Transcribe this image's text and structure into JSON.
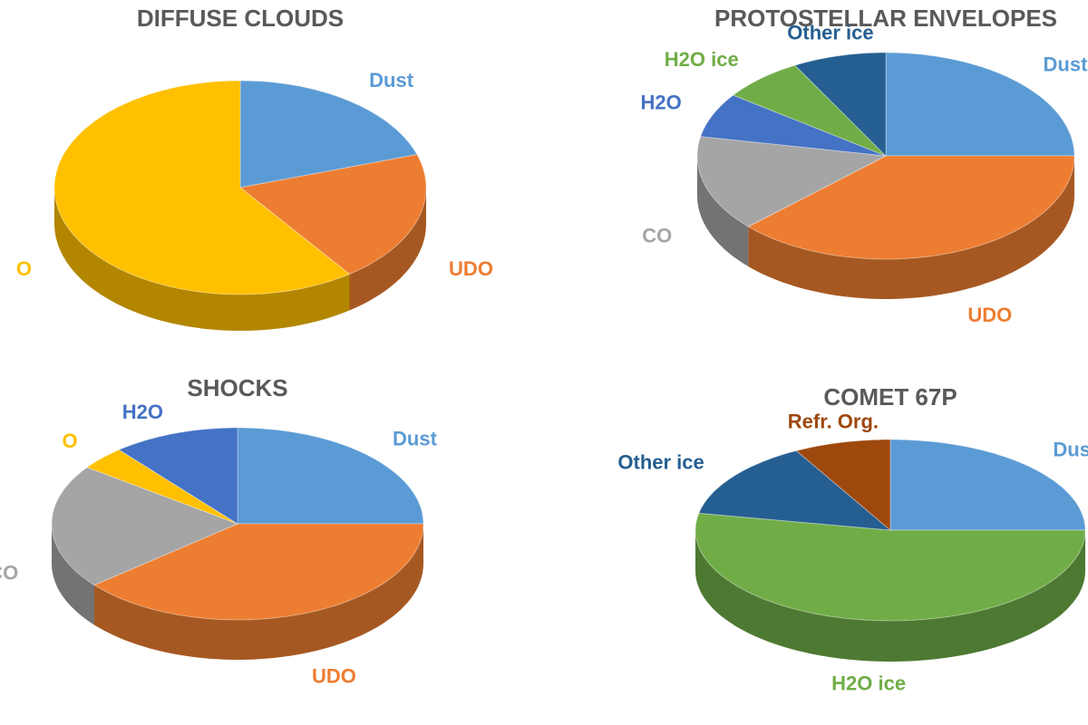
{
  "chart_data": [
    {
      "type": "pie",
      "title": "DIFFUSE CLOUDS",
      "categories": [
        "Dust",
        "UDO",
        "O"
      ],
      "values": [
        20,
        20,
        60
      ],
      "colors": [
        "#5b9bd5",
        "#ed7d31",
        "#ffc000"
      ]
    },
    {
      "type": "pie",
      "title": "PROTOSTELLAR ENVELOPES",
      "categories": [
        "Dust",
        "UDO",
        "CO",
        "H2O",
        "H2O ice",
        "Other ice"
      ],
      "values": [
        25,
        38,
        15,
        7,
        7,
        8
      ],
      "colors": [
        "#5b9bd5",
        "#ed7d31",
        "#a5a5a5",
        "#4472c4",
        "#70ad47",
        "#255e91"
      ]
    },
    {
      "type": "pie",
      "title": "SHOCKS",
      "categories": [
        "Dust",
        "UDO",
        "CO",
        "O",
        "H2O"
      ],
      "values": [
        25,
        39,
        21,
        4,
        11
      ],
      "colors": [
        "#5b9bd5",
        "#ed7d31",
        "#a5a5a5",
        "#ffc000",
        "#4472c4"
      ]
    },
    {
      "type": "pie",
      "title": "COMET 67P",
      "categories": [
        "Dust",
        "H2O ice",
        "Other ice",
        "Refr. Org."
      ],
      "values": [
        25,
        53,
        14,
        8
      ],
      "colors": [
        "#5b9bd5",
        "#70ad47",
        "#255e91",
        "#9e480e"
      ]
    }
  ]
}
